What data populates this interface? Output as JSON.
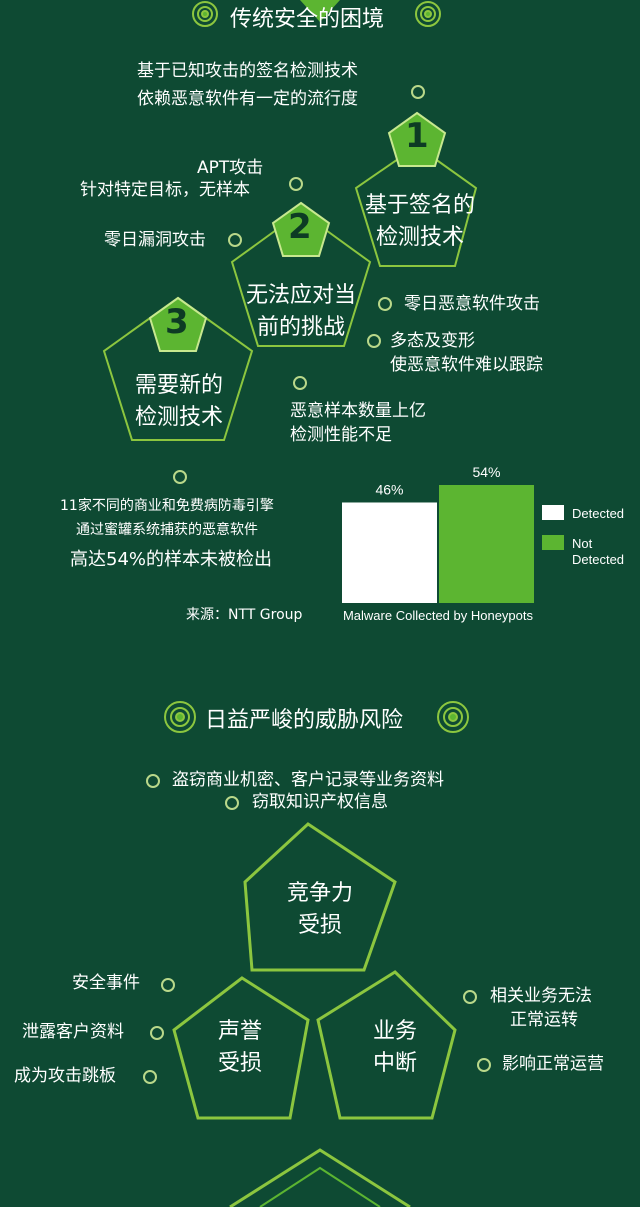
{
  "section1": {
    "title": "传统安全的困境",
    "signature_lines": [
      "基于已知攻击的签名检测技术",
      "依赖恶意软件有一定的流行度"
    ],
    "apt_lines": [
      "APT攻击",
      "针对特定目标，无样本"
    ],
    "zero_day": "零日漏洞攻击",
    "pentagons": [
      {
        "number": "1",
        "lines": [
          "基于签名的",
          "检测技术"
        ]
      },
      {
        "number": "2",
        "lines": [
          "无法应对当",
          "前的挑战"
        ]
      },
      {
        "number": "3",
        "lines": [
          "需要新的",
          "检测技术"
        ]
      }
    ],
    "right_notes": {
      "zero_day_malware": "零日恶意软件攻击",
      "polymorph_lines": [
        "多态及变形",
        "使恶意软件难以跟踪"
      ],
      "volume_lines": [
        "恶意样本数量上亿",
        "检测性能不足"
      ]
    },
    "engine_lines": [
      "11家不同的商业和免费病防毒引擎",
      "通过蜜罐系统捕获的恶意软件"
    ],
    "undetected_line": "高达54%的样本未被检出",
    "source": "来源：NTT Group"
  },
  "chart_data": {
    "type": "bar",
    "title": "",
    "xlabel": "Malware Collected by Honeypots",
    "ylabel": "",
    "ylim": [
      0,
      54
    ],
    "categories": [
      "Detected",
      "Not Detected"
    ],
    "series": [
      {
        "name": "Detected",
        "values": [
          46,
          null
        ]
      },
      {
        "name": "Not Detected",
        "values": [
          null,
          54
        ]
      }
    ],
    "data_labels": [
      "46%",
      "54%"
    ],
    "legend": [
      {
        "label": "Detected",
        "color": "#ffffff"
      },
      {
        "label": "Not Detected",
        "color": "#5cb531"
      }
    ],
    "legend_position": "right",
    "grid": false
  },
  "section2": {
    "title": "日益严峻的威胁风险",
    "top_lines": [
      "盗窃商业机密、客户记录等业务资料",
      "窃取知识产权信息"
    ],
    "pentagons": [
      {
        "lines": [
          "竞争力",
          "受损"
        ]
      },
      {
        "lines": [
          "声誉",
          "受损"
        ]
      },
      {
        "lines": [
          "业务",
          "中断"
        ]
      }
    ],
    "left_notes": [
      "安全事件",
      "泄露客户资料",
      "成为攻击跳板"
    ],
    "right_notes": [
      "相关业务无法",
      "正常运转",
      "影响正常运营"
    ]
  },
  "colors": {
    "background": "#0e4a33",
    "accent_green": "#5cb531",
    "outline_green": "#8cc63f",
    "text": "#ffffff"
  },
  "icons": [
    "rosette-icon",
    "number-badge-icon",
    "bullet-icon"
  ]
}
